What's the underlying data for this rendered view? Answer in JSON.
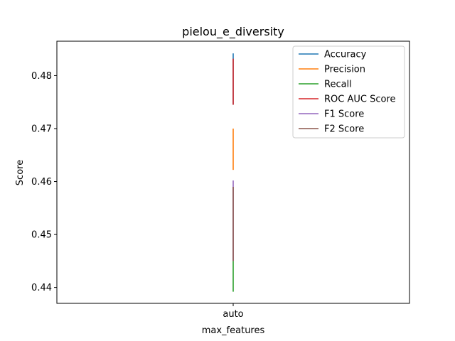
{
  "chart_data": {
    "type": "line",
    "title": "pielou_e_diversity",
    "xlabel": "max_features",
    "ylabel": "Score",
    "categories": [
      "auto"
    ],
    "ylim": [
      0.437,
      0.4865
    ],
    "yticks": [
      0.44,
      0.45,
      0.46,
      0.47,
      0.48
    ],
    "ytick_labels": [
      "0.44",
      "0.45",
      "0.46",
      "0.47",
      "0.48"
    ],
    "legend_position": "top-right",
    "grid": false,
    "series": [
      {
        "name": "Accuracy",
        "color": "#1f77b4",
        "low": 0.4745,
        "high": 0.4842
      },
      {
        "name": "Precision",
        "color": "#ff7f0e",
        "low": 0.4622,
        "high": 0.47
      },
      {
        "name": "Recall",
        "color": "#2ca02c",
        "low": 0.4392,
        "high": 0.445
      },
      {
        "name": "ROC AUC Score",
        "color": "#d62728",
        "low": 0.4745,
        "high": 0.4832
      },
      {
        "name": "F1 Score",
        "color": "#9467bd",
        "low": 0.445,
        "high": 0.4602
      },
      {
        "name": "F2 Score",
        "color": "#8c564b",
        "low": 0.445,
        "high": 0.459
      }
    ]
  }
}
